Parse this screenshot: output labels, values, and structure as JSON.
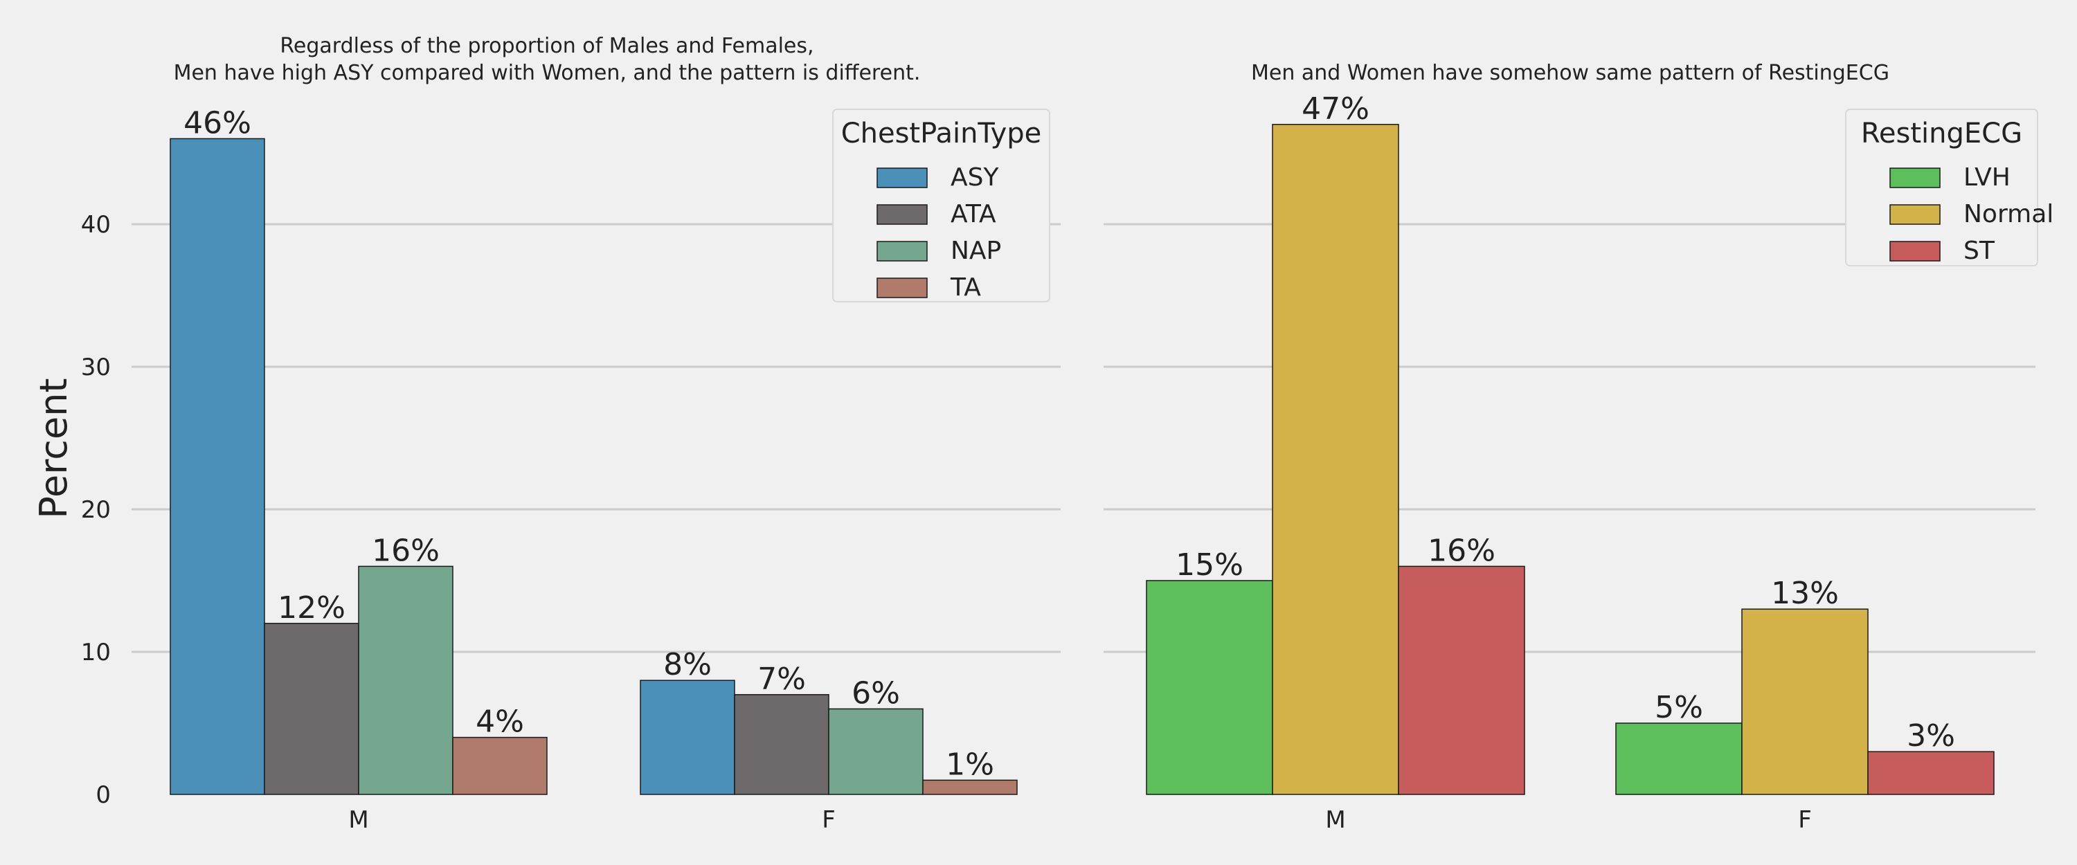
{
  "chart_data": [
    {
      "type": "bar",
      "title_lines": [
        "Regardless of the proportion of Males and Females,",
        "Men have high ASY compared with Women, and the pattern is different."
      ],
      "xlabel": "",
      "ylabel": "Percent",
      "ylim": [
        0,
        49
      ],
      "yticks": [
        0,
        10,
        20,
        30,
        40
      ],
      "grid": true,
      "categories": [
        "M",
        "F"
      ],
      "legend": {
        "title": "ChestPainType",
        "position": "top-right"
      },
      "series": [
        {
          "name": "ASY",
          "color": "#4a90b8",
          "values": [
            46,
            8
          ],
          "labels": [
            "46%",
            "8%"
          ]
        },
        {
          "name": "ATA",
          "color": "#6e6a6b",
          "values": [
            12,
            7
          ],
          "labels": [
            "12%",
            "7%"
          ]
        },
        {
          "name": "NAP",
          "color": "#74a690",
          "values": [
            16,
            6
          ],
          "labels": [
            "16%",
            "6%"
          ]
        },
        {
          "name": "TA",
          "color": "#b07b6b",
          "values": [
            4,
            1
          ],
          "labels": [
            "4%",
            "1%"
          ]
        }
      ]
    },
    {
      "type": "bar",
      "title_lines": [
        "Men and Women have somehow same pattern of RestingECG"
      ],
      "xlabel": "",
      "ylabel": "",
      "ylim": [
        0,
        49
      ],
      "yticks": [
        0,
        10,
        20,
        30,
        40
      ],
      "grid": true,
      "categories": [
        "M",
        "F"
      ],
      "legend": {
        "title": "RestingECG",
        "position": "top-right"
      },
      "series": [
        {
          "name": "LVH",
          "color": "#5cbf5c",
          "values": [
            15,
            5
          ],
          "labels": [
            "15%",
            "5%"
          ]
        },
        {
          "name": "Normal",
          "color": "#d4b24a",
          "values": [
            47,
            13
          ],
          "labels": [
            "47%",
            "13%"
          ]
        },
        {
          "name": "ST",
          "color": "#c75c5c",
          "values": [
            16,
            3
          ],
          "labels": [
            "16%",
            "3%"
          ]
        }
      ]
    }
  ]
}
